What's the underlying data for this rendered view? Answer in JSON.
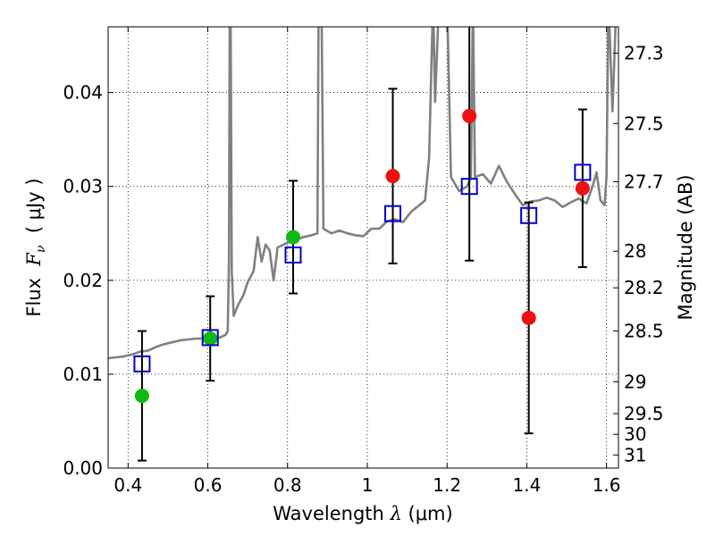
{
  "chart_data": {
    "type": "scatter",
    "xlabel_prefix": "Wavelength  ",
    "xlabel_var": "λ",
    "xlabel_suffix": " (μm)",
    "ylabel_prefix": "Flux  ",
    "ylabel_var": "F",
    "ylabel_sub": "ν",
    "ylabel_suffix": "  ( μJy )",
    "y2label": "Magnitude (AB)",
    "xlim": [
      0.35,
      1.63
    ],
    "ylim": [
      0.0,
      0.047
    ],
    "grid": true,
    "x_ticks": [
      0.4,
      0.6,
      0.8,
      1.0,
      1.2,
      1.4,
      1.6
    ],
    "x_tick_labels": [
      "0.4",
      "0.6",
      "0.8",
      "1",
      "1.2",
      "1.4",
      "1.6"
    ],
    "y_ticks": [
      0.0,
      0.01,
      0.02,
      0.03,
      0.04
    ],
    "y_tick_labels": [
      "0.00",
      "0.01",
      "0.02",
      "0.03",
      "0.04"
    ],
    "mag_ticks": [
      {
        "label": "27.3",
        "flux": 0.0442
      },
      {
        "label": "27.5",
        "flux": 0.0367
      },
      {
        "label": "27.7",
        "flux": 0.0305
      },
      {
        "label": "28",
        "flux": 0.0231
      },
      {
        "label": "28.2",
        "flux": 0.0192
      },
      {
        "label": "28.5",
        "flux": 0.0146
      },
      {
        "label": "29",
        "flux": 0.0092
      },
      {
        "label": "29.5",
        "flux": 0.0058
      },
      {
        "label": "30",
        "flux": 0.0036
      },
      {
        "label": "31",
        "flux": 0.0014
      }
    ],
    "colors": {
      "spectrum": "#808080",
      "model": "#0000cc",
      "ground": "#11b811",
      "hst": "#ee1111",
      "error": "#000000"
    },
    "spectrum": [
      [
        0.35,
        0.0117
      ],
      [
        0.37,
        0.0118
      ],
      [
        0.39,
        0.0119
      ],
      [
        0.41,
        0.0121
      ],
      [
        0.43,
        0.0124
      ],
      [
        0.45,
        0.0125
      ],
      [
        0.47,
        0.0129
      ],
      [
        0.49,
        0.0132
      ],
      [
        0.51,
        0.0134
      ],
      [
        0.53,
        0.0136
      ],
      [
        0.55,
        0.0137
      ],
      [
        0.57,
        0.0138
      ],
      [
        0.59,
        0.0138
      ],
      [
        0.61,
        0.0139
      ],
      [
        0.63,
        0.0139
      ],
      [
        0.645,
        0.0142
      ],
      [
        0.65,
        0.0146
      ],
      [
        0.653,
        0.022
      ],
      [
        0.655,
        0.05
      ],
      [
        0.657,
        0.05
      ],
      [
        0.66,
        0.021
      ],
      [
        0.665,
        0.0162
      ],
      [
        0.675,
        0.0173
      ],
      [
        0.69,
        0.0185
      ],
      [
        0.7,
        0.0198
      ],
      [
        0.715,
        0.021
      ],
      [
        0.725,
        0.0246
      ],
      [
        0.735,
        0.022
      ],
      [
        0.745,
        0.0238
      ],
      [
        0.755,
        0.0232
      ],
      [
        0.765,
        0.02
      ],
      [
        0.775,
        0.0235
      ],
      [
        0.79,
        0.0238
      ],
      [
        0.8,
        0.024
      ],
      [
        0.82,
        0.0243
      ],
      [
        0.84,
        0.0246
      ],
      [
        0.86,
        0.0248
      ],
      [
        0.875,
        0.025
      ],
      [
        0.878,
        0.05
      ],
      [
        0.885,
        0.05
      ],
      [
        0.89,
        0.0255
      ],
      [
        0.91,
        0.025
      ],
      [
        0.93,
        0.0253
      ],
      [
        0.95,
        0.025
      ],
      [
        0.97,
        0.0248
      ],
      [
        0.99,
        0.0247
      ],
      [
        1.01,
        0.0255
      ],
      [
        1.03,
        0.0255
      ],
      [
        1.05,
        0.0263
      ],
      [
        1.07,
        0.0265
      ],
      [
        1.09,
        0.0262
      ],
      [
        1.11,
        0.0273
      ],
      [
        1.13,
        0.028
      ],
      [
        1.145,
        0.0285
      ],
      [
        1.155,
        0.033
      ],
      [
        1.165,
        0.05
      ],
      [
        1.17,
        0.039
      ],
      [
        1.18,
        0.05
      ],
      [
        1.19,
        0.05
      ],
      [
        1.2,
        0.05
      ],
      [
        1.21,
        0.031
      ],
      [
        1.23,
        0.0295
      ],
      [
        1.25,
        0.03
      ],
      [
        1.26,
        0.031
      ],
      [
        1.265,
        0.05
      ],
      [
        1.27,
        0.031
      ],
      [
        1.29,
        0.0313
      ],
      [
        1.31,
        0.0303
      ],
      [
        1.33,
        0.0322
      ],
      [
        1.35,
        0.0305
      ],
      [
        1.37,
        0.0292
      ],
      [
        1.39,
        0.028
      ],
      [
        1.41,
        0.0284
      ],
      [
        1.43,
        0.0285
      ],
      [
        1.45,
        0.0288
      ],
      [
        1.47,
        0.0285
      ],
      [
        1.49,
        0.0278
      ],
      [
        1.51,
        0.0283
      ],
      [
        1.53,
        0.0287
      ],
      [
        1.55,
        0.0282
      ],
      [
        1.565,
        0.03
      ],
      [
        1.575,
        0.0315
      ],
      [
        1.585,
        0.0285
      ],
      [
        1.595,
        0.028
      ],
      [
        1.6,
        0.031
      ],
      [
        1.605,
        0.05
      ],
      [
        1.615,
        0.038
      ],
      [
        1.625,
        0.05
      ],
      [
        1.63,
        0.05
      ]
    ],
    "model_points": [
      {
        "x": 0.435,
        "y": 0.0111
      },
      {
        "x": 0.606,
        "y": 0.0139
      },
      {
        "x": 0.814,
        "y": 0.0227
      },
      {
        "x": 1.064,
        "y": 0.0271
      },
      {
        "x": 1.256,
        "y": 0.03
      },
      {
        "x": 1.405,
        "y": 0.0269
      },
      {
        "x": 1.54,
        "y": 0.0315
      }
    ],
    "ground_points": [
      {
        "x": 0.435,
        "y": 0.0077,
        "yerr": 0.0069
      },
      {
        "x": 0.606,
        "y": 0.0138,
        "yerr": 0.0045
      },
      {
        "x": 0.814,
        "y": 0.0246,
        "yerr": 0.006
      }
    ],
    "hst_points": [
      {
        "x": 1.064,
        "y": 0.0311,
        "yerr": 0.0093
      },
      {
        "x": 1.256,
        "y": 0.0375,
        "yerr": 0.0154
      },
      {
        "x": 1.405,
        "y": 0.016,
        "yerr": 0.0123
      },
      {
        "x": 1.54,
        "y": 0.0298,
        "yerr": 0.0084
      }
    ]
  }
}
